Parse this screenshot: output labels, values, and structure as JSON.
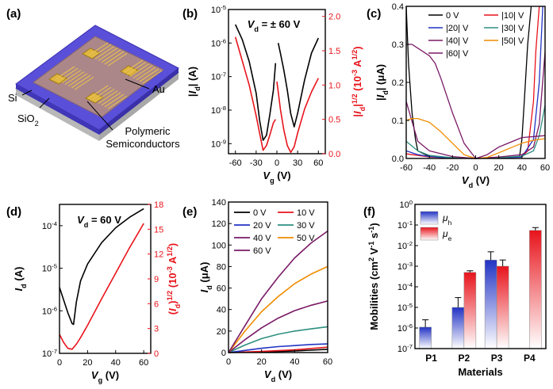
{
  "colors": {
    "black": "#000000",
    "red": "#e8141c",
    "blue": "#2233c4",
    "purple": "#7a1a66",
    "teal": "#2e8f80",
    "orange": "#f08c00"
  },
  "chart_data": [
    {
      "panel": "(a)",
      "type": "diagram",
      "labels": {
        "si": "Si",
        "sio2": "SiO",
        "sio2_sub": "2",
        "au": "Au",
        "semi1": "Polymeric",
        "semi2": "Semiconductors"
      }
    },
    {
      "panel": "(b)",
      "type": "line",
      "annotation": "V = ± 60 V",
      "annotation_parts": {
        "pre": "V",
        "sub": "d",
        "post": " = ± 60 V"
      },
      "xlabel": "V (V)",
      "xlabel_parts": {
        "main": "V",
        "sub": "g",
        "post": " (V)"
      },
      "ylabel_left": "|Id| (A)",
      "ylabel_right": "|Id|1/2 (10-3 A1/2)",
      "xlim": [
        -70,
        70
      ],
      "xticks": [
        -60,
        -30,
        0,
        30,
        60
      ],
      "ylim_left_log": [
        -9.3,
        -5
      ],
      "yticks_left": [
        "10-9",
        "10-8",
        "10-7",
        "10-6",
        "10-5"
      ],
      "ylim_right": [
        0,
        2.1
      ],
      "yticks_right": [
        "0.0",
        "0.5",
        "1.0",
        "1.5",
        "2.0"
      ],
      "series": [
        {
          "name": "|Id| forward",
          "axis": "left_log",
          "color": "black",
          "x": [
            -60,
            -50,
            -40,
            -30,
            -25,
            -20,
            -15,
            -10,
            -5,
            -2
          ],
          "y": [
            -5.45,
            -5.9,
            -6.55,
            -7.5,
            -8.3,
            -8.9,
            -8.75,
            -8.1,
            -7.4,
            -6.6
          ]
        },
        {
          "name": "|Id| reverse",
          "axis": "left_log",
          "color": "black",
          "x": [
            2,
            5,
            10,
            15,
            20,
            25,
            30,
            40,
            50,
            60
          ],
          "y": [
            -6,
            -6.3,
            -6.8,
            -7.4,
            -8.1,
            -8.5,
            -8.1,
            -7.1,
            -6.3,
            -5.85
          ]
        },
        {
          "name": "|Id|1/2 forward",
          "axis": "right",
          "color": "red",
          "x": [
            -60,
            -50,
            -40,
            -30,
            -25,
            -20,
            -15,
            -10,
            -5,
            -2
          ],
          "y": [
            1.7,
            1.35,
            1.0,
            0.55,
            0.3,
            0.05,
            0.12,
            0.28,
            0.45,
            0.5
          ]
        },
        {
          "name": "|Id|1/2 reverse",
          "axis": "right",
          "color": "red",
          "x": [
            0,
            2,
            5,
            10,
            15,
            20,
            25,
            30,
            40,
            50,
            60
          ],
          "y": [
            1.05,
            0.9,
            0.65,
            0.35,
            0.12,
            0.02,
            0.1,
            0.3,
            0.65,
            0.9,
            1.1
          ]
        }
      ]
    },
    {
      "panel": "(c)",
      "type": "line",
      "xlabel": "V (V)",
      "xlabel_parts": {
        "main": "V",
        "sub": "d",
        "post": " (V)"
      },
      "ylabel": "|Id| (μA)",
      "xlim": [
        -60,
        60
      ],
      "xticks": [
        -60,
        -40,
        -20,
        0,
        20,
        40,
        60
      ],
      "ylim": [
        0,
        0.4
      ],
      "yticks": [
        "0.0",
        "0.1",
        "0.2",
        "0.3",
        "0.4"
      ],
      "series": [
        {
          "name": "0 V",
          "color": "black",
          "x": [
            -60,
            -58,
            -55,
            -52,
            -50,
            -40,
            -20,
            0,
            20,
            38,
            40,
            42,
            45,
            48
          ],
          "y": [
            0.4,
            0.25,
            0.12,
            0.05,
            0.02,
            0.005,
            0.001,
            0,
            0.001,
            0.005,
            0.05,
            0.15,
            0.3,
            0.4
          ]
        },
        {
          "name": "|10| V",
          "color": "red",
          "x": [
            -60,
            -40,
            -20,
            0,
            20,
            40,
            45,
            50,
            52,
            55
          ],
          "y": [
            0.012,
            0.004,
            0.001,
            0,
            0.001,
            0.004,
            0.02,
            0.15,
            0.28,
            0.4
          ]
        },
        {
          "name": "|20| V",
          "color": "blue",
          "x": [
            -60,
            -50,
            -40,
            -20,
            0,
            20,
            40,
            50,
            55,
            58
          ],
          "y": [
            0.02,
            0.01,
            0.005,
            0.001,
            0,
            0.001,
            0.004,
            0.05,
            0.2,
            0.4
          ]
        },
        {
          "name": "|30| V",
          "color": "teal",
          "x": [
            -60,
            -50,
            -40,
            -20,
            0,
            20,
            40,
            50,
            55,
            60
          ],
          "y": [
            0.045,
            0.02,
            0.008,
            0.002,
            0,
            0.002,
            0.006,
            0.02,
            0.06,
            0.14
          ]
        },
        {
          "name": "|40| V",
          "color": "purple",
          "x": [
            -60,
            -50,
            -40,
            -20,
            0,
            20,
            40,
            50,
            55,
            60
          ],
          "y": [
            0.15,
            0.045,
            0.02,
            0.005,
            0,
            0.004,
            0.01,
            0.03,
            0.09,
            0.28
          ]
        },
        {
          "name": "|50| V",
          "color": "orange",
          "x": [
            -60,
            -55,
            -50,
            -40,
            -30,
            -20,
            -10,
            0,
            10,
            20,
            40,
            50,
            60
          ],
          "y": [
            0.1,
            0.105,
            0.105,
            0.095,
            0.07,
            0.04,
            0.01,
            0,
            0.003,
            0.015,
            0.04,
            0.048,
            0.052
          ]
        },
        {
          "name": "|60| V",
          "color": "purple",
          "x": [
            -60,
            -55,
            -50,
            -45,
            -40,
            -35,
            -30,
            -20,
            -10,
            0,
            10,
            20,
            40,
            60
          ],
          "y": [
            0.3,
            0.3,
            0.29,
            0.28,
            0.27,
            0.25,
            0.21,
            0.12,
            0.04,
            0,
            0.01,
            0.03,
            0.055,
            0.06
          ]
        }
      ]
    },
    {
      "panel": "(d)",
      "type": "line",
      "annotation": "V = 60 V",
      "annotation_parts": {
        "pre": "V",
        "sub": "d",
        "post": " = 60 V"
      },
      "xlabel": "V (V)",
      "xlabel_parts": {
        "main": "V",
        "sub": "g",
        "post": " (V)"
      },
      "ylabel_left": "Id (A)",
      "ylabel_right": "(Id)1/2 (10-3 A1/2)",
      "xlim": [
        0,
        65
      ],
      "xticks": [
        0,
        20,
        40,
        60
      ],
      "ylim_left_log": [
        -7,
        -3.5
      ],
      "yticks_left": [
        "10-7",
        "10-6",
        "10-5",
        "10-4"
      ],
      "ylim_right": [
        0,
        18
      ],
      "yticks_right": [
        "0",
        "3",
        "6",
        "9",
        "12",
        "15",
        "18"
      ],
      "series": [
        {
          "name": "Id",
          "axis": "left_log",
          "color": "black",
          "x": [
            0,
            3,
            6,
            9,
            10,
            12,
            15,
            20,
            30,
            40,
            50,
            60
          ],
          "y": [
            -5.45,
            -5.75,
            -6.05,
            -6.3,
            -6.32,
            -5.8,
            -5.3,
            -4.9,
            -4.4,
            -4.05,
            -3.8,
            -3.6
          ]
        },
        {
          "name": "Id 1/2",
          "axis": "right",
          "color": "red",
          "x": [
            0,
            3,
            6,
            9,
            12,
            15,
            20,
            30,
            40,
            50,
            60
          ],
          "y": [
            2.3,
            1.3,
            0.6,
            0.5,
            1.1,
            1.9,
            3.4,
            6.6,
            9.7,
            12.8,
            15.7
          ]
        }
      ]
    },
    {
      "panel": "(e)",
      "type": "line",
      "xlabel": "V (V)",
      "xlabel_parts": {
        "main": "V",
        "sub": "d",
        "post": " (V)"
      },
      "ylabel": "Id (μA)",
      "xlim": [
        0,
        60
      ],
      "xticks": [
        0,
        20,
        40,
        60
      ],
      "ylim": [
        0,
        140
      ],
      "yticks": [
        "0",
        "20",
        "40",
        "60",
        "80",
        "100",
        "120",
        "140"
      ],
      "series": [
        {
          "name": "0 V",
          "color": "black",
          "x": [
            0,
            20,
            40,
            60
          ],
          "y": [
            0,
            0.5,
            1.5,
            3
          ]
        },
        {
          "name": "10 V",
          "color": "red",
          "x": [
            0,
            20,
            40,
            60
          ],
          "y": [
            0,
            1,
            2.5,
            5
          ]
        },
        {
          "name": "20 V",
          "color": "blue",
          "x": [
            0,
            10,
            20,
            30,
            40,
            50,
            60
          ],
          "y": [
            0,
            2,
            4,
            5.5,
            6.5,
            7.5,
            8
          ]
        },
        {
          "name": "30 V",
          "color": "teal",
          "x": [
            0,
            10,
            20,
            30,
            40,
            50,
            60
          ],
          "y": [
            0,
            7,
            13,
            17,
            20,
            22,
            24
          ]
        },
        {
          "name": "40 V",
          "color": "purple",
          "x": [
            0,
            10,
            20,
            30,
            40,
            50,
            60
          ],
          "y": [
            0,
            12,
            23,
            32,
            39,
            44,
            48
          ]
        },
        {
          "name": "50 V",
          "color": "orange",
          "x": [
            0,
            10,
            20,
            30,
            40,
            50,
            60
          ],
          "y": [
            0,
            20,
            38,
            52,
            64,
            73,
            80
          ]
        },
        {
          "name": "60 V",
          "color": "purple",
          "x": [
            0,
            10,
            20,
            30,
            40,
            50,
            60
          ],
          "y": [
            0,
            25,
            50,
            70,
            88,
            102,
            113
          ]
        }
      ]
    },
    {
      "panel": "(f)",
      "type": "bar",
      "xlabel": "Materials",
      "ylabel": "Mobilities (cm2 V-1 s-1)",
      "categories": [
        "P1",
        "P2",
        "P3",
        "P4"
      ],
      "ylim_log": [
        -7,
        0
      ],
      "yticks": [
        "10-7",
        "10-6",
        "10-5",
        "10-4",
        "10-3",
        "10-2",
        "10-1",
        "100"
      ],
      "series": [
        {
          "name": "μh",
          "color": "blue",
          "values": [
            1.1e-06,
            1e-05,
            0.002,
            null
          ],
          "errors_up": [
            2.5e-06,
            3e-05,
            0.005,
            null
          ]
        },
        {
          "name": "μe",
          "color": "red",
          "values": [
            null,
            0.0005,
            0.001,
            0.055
          ],
          "errors_up": [
            null,
            0.0006,
            0.002,
            0.075
          ]
        }
      ],
      "legend": [
        "μh",
        "μe"
      ]
    }
  ]
}
